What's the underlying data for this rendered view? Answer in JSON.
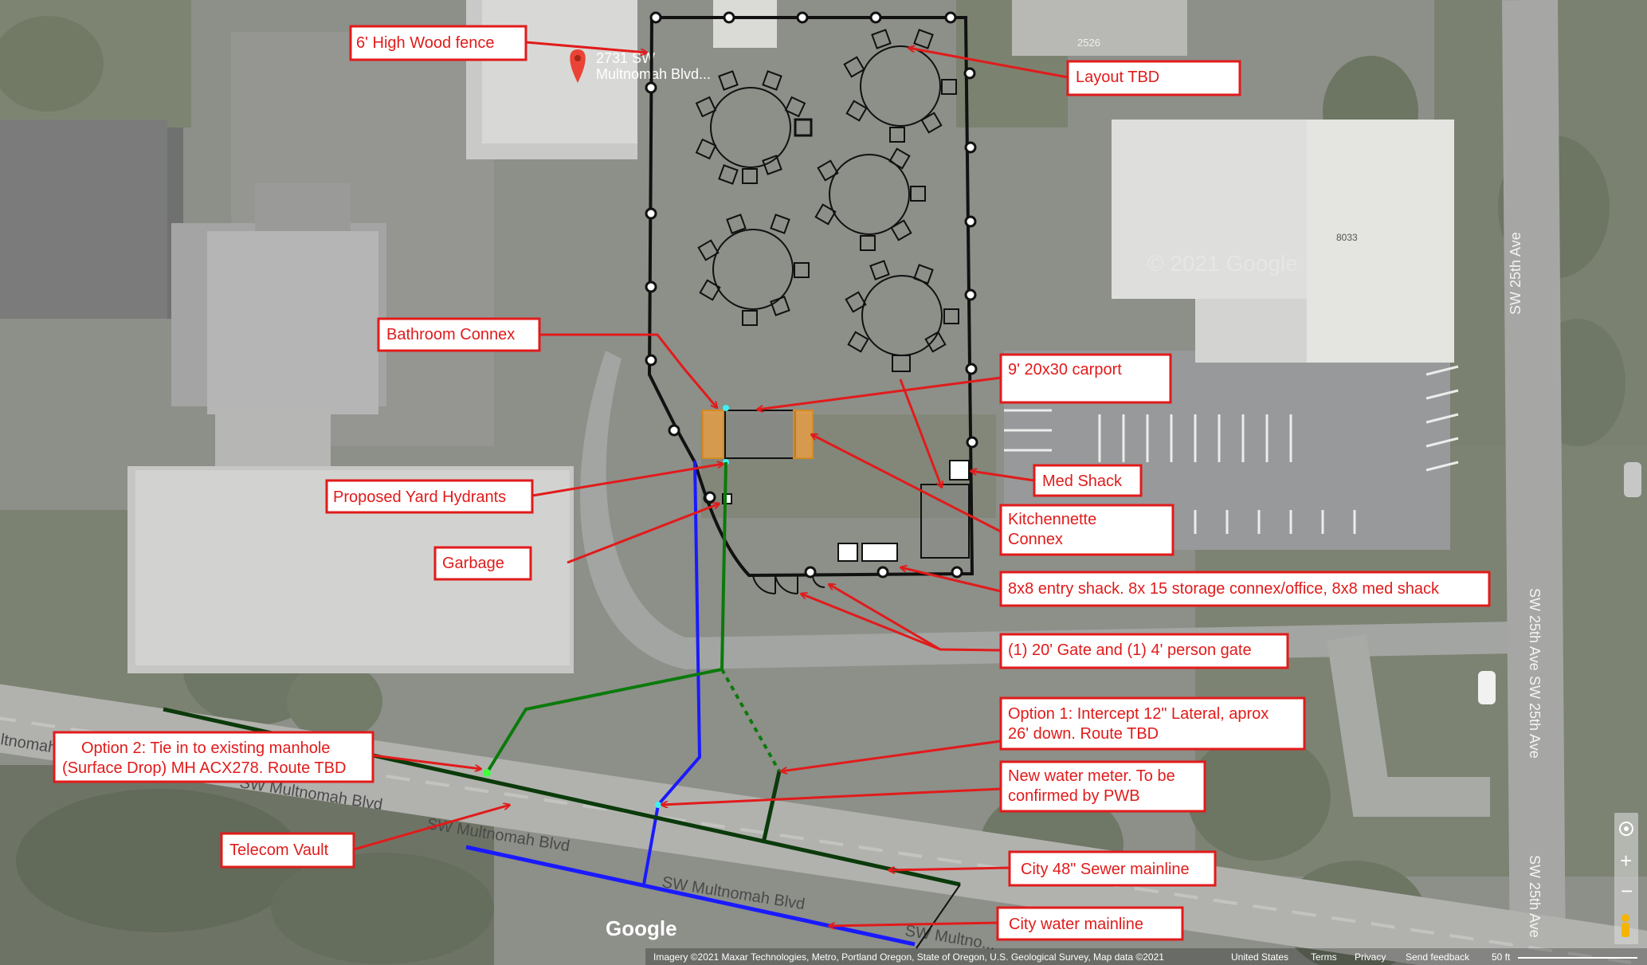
{
  "map": {
    "google_logo": "Google",
    "address_pin_line1": "2731 SW",
    "address_pin_line2": "Multnomah Blvd...",
    "house_numbers": [
      "2526",
      "8033"
    ],
    "watermark": "© 2021 Google",
    "attribution": "Imagery ©2021 Maxar Technologies, Metro, Portland Oregon, State of Oregon, U.S. Geological Survey, Map data ©2021",
    "footer_links": [
      "United States",
      "Terms",
      "Privacy",
      "Send feedback"
    ],
    "scale_label": "50 ft",
    "roads": {
      "multnomah_upper": "SW Multnomah Blvd",
      "multnomah_lower": "SW Multnomah Blvd",
      "multnomah_mid": "SW Multnomah Blvd",
      "multnomah_edge": "SW Multno...",
      "multnomah_left_edge": "ltnomah",
      "sw25_a": "SW 25th Ave",
      "sw25_b": "SW 25th Ave",
      "sw25_c": "SW 25th Ave",
      "sw25_d": "SW 25th Ave"
    },
    "controls": {
      "zoom_in": "+",
      "zoom_out": "−"
    },
    "colors": {
      "annotation": "#e11b1b",
      "fence": "#111111",
      "water_line": "#1a1aff",
      "sewer_option": "#0a7a0a",
      "sewer_main": "#0b3a0b",
      "carport": "#8a8a8a",
      "connex": "#f0a040"
    }
  },
  "annotations": {
    "fence": "6' High Wood fence",
    "layout": "Layout TBD",
    "bathroom": "Bathroom Connex",
    "carport": "9' 20x30 carport",
    "med_shack": "Med Shack",
    "hydrants": "Proposed Yard Hydrants",
    "kitchenette_1": "Kitchennette",
    "kitchenette_2": "Connex",
    "garbage": "Garbage",
    "entry": "8x8 entry shack. 8x 15 storage connex/office, 8x8 med shack",
    "gate": "(1) 20' Gate and (1) 4' person gate",
    "option1_1": "Option 1: Intercept 12\" Lateral, aprox",
    "option1_2": "26' down. Route TBD",
    "option2_1": "Option 2: Tie in to existing manhole",
    "option2_2": "(Surface Drop) MH ACX278. Route TBD",
    "water_meter_1": "New water meter. To be",
    "water_meter_2": "confirmed by PWB",
    "telecom": "Telecom Vault",
    "sewer_main": "City 48\" Sewer mainline",
    "water_main": "City water mainline"
  }
}
